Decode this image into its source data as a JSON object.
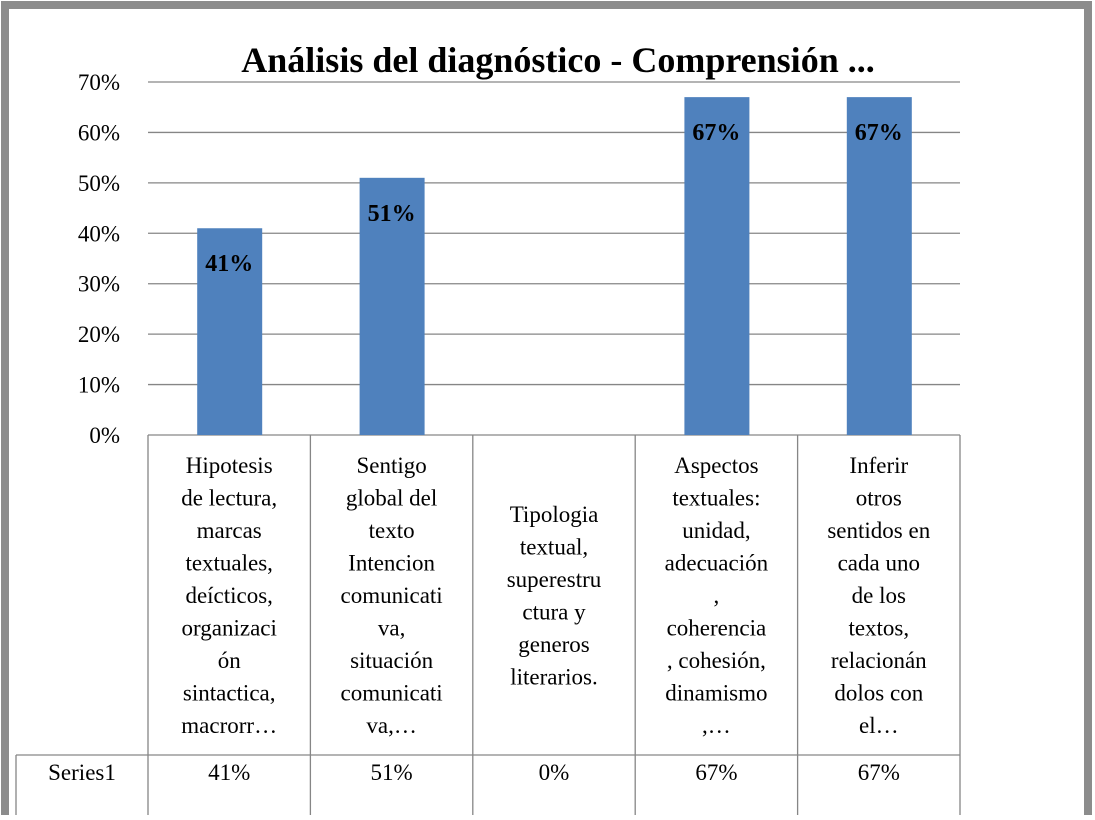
{
  "chart_data": {
    "type": "bar",
    "title": "Análisis del diagnóstico - Comprensión ...",
    "categories": [
      "Hipotesis\nde lectura,\nmarcas\ntextuales,\ndeícticos,\norganizaci\nón\nsintactica,\nmacrorr…",
      "Sentigo\nglobal del\ntexto\nIntencion\ncomunicati\nva,\nsituación\ncomunicati\nva,…",
      "Tipologia\ntextual,\nsuperestru\nctura y\ngeneros\nliterarios.",
      "Aspectos\ntextuales:\nunidad,\nadecuación\n,\ncoherencia\n, cohesión,\ndinamismo\n,…",
      "Inferir\notros\nsentidos en\ncada uno\nde los\ntextos,\nrelacionán\ndolos  con\nel…"
    ],
    "values": [
      41,
      51,
      0,
      67,
      67
    ],
    "value_labels": [
      "41%",
      "51%",
      null,
      "67%",
      "67%"
    ],
    "color": "#4f81bd",
    "ylim": [
      0,
      70
    ],
    "yticks": [
      {
        "value": 0,
        "label": "0%"
      },
      {
        "value": 10,
        "label": "10%"
      },
      {
        "value": 20,
        "label": "20%"
      },
      {
        "value": 30,
        "label": "30%"
      },
      {
        "value": 40,
        "label": "40%"
      },
      {
        "value": 50,
        "label": "50%"
      },
      {
        "value": 60,
        "label": "60%"
      },
      {
        "value": 70,
        "label": "70%"
      }
    ],
    "grid": true,
    "data_table": {
      "series_name": "Series1",
      "cells": [
        "41%",
        "51%",
        "0%",
        "67%",
        "67%"
      ]
    }
  }
}
